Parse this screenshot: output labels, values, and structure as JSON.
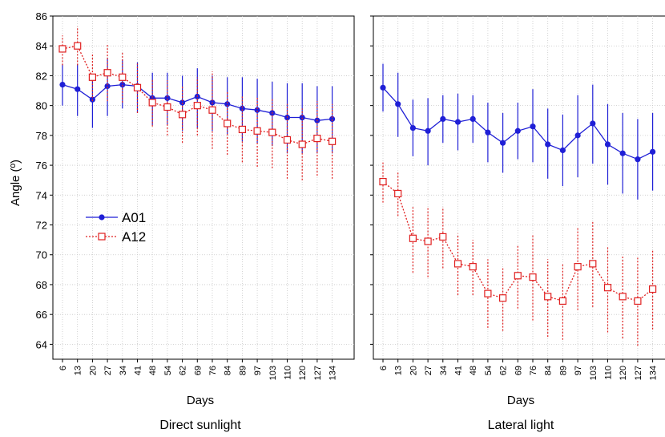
{
  "chart_data": {
    "type": "line",
    "ylabel": "Angle (º)",
    "ylim": [
      63,
      86
    ],
    "yticks": [
      64,
      66,
      68,
      70,
      72,
      74,
      76,
      78,
      80,
      82,
      84,
      86
    ],
    "categories": [
      "6",
      "13",
      "20",
      "27",
      "34",
      "41",
      "48",
      "54",
      "62",
      "69",
      "76",
      "84",
      "89",
      "97",
      "103",
      "110",
      "120",
      "127",
      "134"
    ],
    "legend": {
      "position": "left-middle",
      "entries": [
        "A01",
        "A12"
      ]
    },
    "series_styles": {
      "A01": {
        "color": "#1f1fd6",
        "line": "solid",
        "marker": "filled-circle"
      },
      "A12": {
        "color": "#e02020",
        "line": "dotted",
        "marker": "open-square"
      }
    },
    "panels": [
      {
        "caption": "Direct sunlight",
        "xlabel": "Days",
        "series": [
          {
            "name": "A01",
            "x": [
              6,
              13,
              20,
              27,
              34,
              41,
              48,
              54,
              62,
              69,
              76,
              84,
              89,
              97,
              103,
              110,
              120,
              127,
              134
            ],
            "values": [
              81.4,
              81.1,
              80.4,
              81.3,
              81.4,
              81.3,
              80.5,
              80.5,
              80.2,
              80.6,
              80.2,
              80.1,
              79.8,
              79.7,
              79.5,
              79.2,
              79.2,
              79.0,
              79.1
            ],
            "err_low": [
              80.0,
              79.3,
              78.5,
              79.3,
              79.8,
              79.5,
              78.7,
              78.7,
              78.3,
              78.5,
              78.3,
              78.1,
              77.6,
              77.5,
              77.3,
              76.8,
              76.8,
              76.8,
              76.8
            ],
            "err_high": [
              82.8,
              82.8,
              82.1,
              83.2,
              83.1,
              82.9,
              82.2,
              82.2,
              82.0,
              82.5,
              82.0,
              81.9,
              81.9,
              81.8,
              81.6,
              81.5,
              81.5,
              81.3,
              81.3
            ]
          },
          {
            "name": "A12",
            "x": [
              6,
              13,
              20,
              27,
              34,
              41,
              48,
              54,
              62,
              69,
              76,
              84,
              89,
              97,
              103,
              110,
              120,
              127,
              134
            ],
            "values": [
              83.8,
              84.0,
              81.9,
              82.2,
              81.9,
              81.2,
              80.2,
              79.9,
              79.4,
              80.0,
              79.7,
              78.8,
              78.4,
              78.3,
              78.2,
              77.7,
              77.4,
              77.8,
              77.6
            ],
            "err_low": [
              82.7,
              82.7,
              80.3,
              80.3,
              80.2,
              79.5,
              78.6,
              78.0,
              77.5,
              78.0,
              77.1,
              76.7,
              76.2,
              75.9,
              75.8,
              75.1,
              75.0,
              75.3,
              75.1
            ],
            "err_high": [
              84.7,
              85.3,
              83.5,
              84.1,
              83.6,
              82.8,
              81.8,
              81.7,
              81.3,
              81.9,
              82.3,
              80.9,
              80.6,
              80.6,
              80.5,
              80.1,
              79.8,
              80.3,
              80.1
            ]
          }
        ]
      },
      {
        "caption": "Lateral light",
        "xlabel": "Days",
        "series": [
          {
            "name": "A01",
            "x": [
              6,
              13,
              20,
              27,
              34,
              41,
              48,
              54,
              62,
              69,
              76,
              84,
              89,
              97,
              103,
              110,
              120,
              127,
              134
            ],
            "values": [
              81.2,
              80.1,
              78.5,
              78.3,
              79.1,
              78.9,
              79.1,
              78.2,
              77.5,
              78.3,
              78.6,
              77.4,
              77.0,
              78.0,
              78.8,
              77.4,
              76.8,
              76.4,
              76.9
            ],
            "err_low": [
              79.6,
              77.9,
              76.6,
              76.0,
              77.5,
              77.0,
              77.5,
              76.2,
              75.5,
              76.4,
              76.2,
              75.1,
              74.6,
              75.2,
              76.1,
              74.7,
              74.1,
              73.7,
              74.3
            ],
            "err_high": [
              82.8,
              82.2,
              80.4,
              80.5,
              80.7,
              80.8,
              80.7,
              80.2,
              79.5,
              80.2,
              81.1,
              79.8,
              79.4,
              80.7,
              81.4,
              80.1,
              79.5,
              79.1,
              79.5
            ]
          },
          {
            "name": "A12",
            "x": [
              6,
              13,
              20,
              27,
              34,
              41,
              48,
              54,
              62,
              69,
              76,
              84,
              89,
              97,
              103,
              110,
              120,
              127,
              134
            ],
            "values": [
              74.9,
              74.1,
              71.1,
              70.9,
              71.2,
              69.4,
              69.2,
              67.4,
              67.1,
              68.6,
              68.5,
              67.2,
              66.9,
              69.2,
              69.4,
              67.8,
              67.2,
              66.9,
              67.7
            ],
            "err_low": [
              73.5,
              72.6,
              68.8,
              68.5,
              69.1,
              67.3,
              67.3,
              65.1,
              64.9,
              66.4,
              65.6,
              64.5,
              64.3,
              66.3,
              66.5,
              64.8,
              64.4,
              63.9,
              65.0
            ],
            "err_high": [
              76.2,
              75.6,
              73.2,
              73.2,
              73.2,
              71.4,
              71.0,
              69.7,
              69.2,
              70.7,
              71.3,
              69.7,
              69.4,
              71.8,
              72.2,
              70.6,
              69.9,
              69.8,
              70.3
            ]
          }
        ]
      }
    ]
  }
}
